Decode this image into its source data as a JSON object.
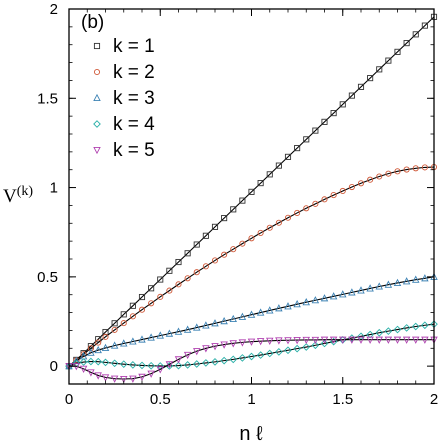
{
  "chart_data": {
    "type": "line",
    "panel_label": "(b)",
    "xlabel": "n ℓ",
    "ylabel": "V",
    "ylabel_sup": "(k)",
    "xlim": [
      0,
      2
    ],
    "ylim": [
      -0.1,
      2
    ],
    "x_ticks": [
      {
        "value": 0,
        "label": "0"
      },
      {
        "value": 0.5,
        "label": "0.5"
      },
      {
        "value": 1,
        "label": "1"
      },
      {
        "value": 1.5,
        "label": "1.5"
      },
      {
        "value": 2,
        "label": "2"
      }
    ],
    "y_ticks": [
      {
        "value": 0,
        "label": "0"
      },
      {
        "value": 0.5,
        "label": "0.5"
      },
      {
        "value": 1,
        "label": "1"
      },
      {
        "value": 1.5,
        "label": "1.5"
      },
      {
        "value": 2,
        "label": "2"
      }
    ],
    "grid": false,
    "legend_position": "top-left",
    "x": [
      0,
      0.04,
      0.08,
      0.12,
      0.16,
      0.2,
      0.25,
      0.3,
      0.35,
      0.4,
      0.45,
      0.5,
      0.55,
      0.6,
      0.65,
      0.7,
      0.75,
      0.8,
      0.85,
      0.9,
      0.95,
      1.0,
      1.05,
      1.1,
      1.15,
      1.2,
      1.25,
      1.3,
      1.35,
      1.4,
      1.45,
      1.5,
      1.55,
      1.6,
      1.65,
      1.7,
      1.75,
      1.8,
      1.85,
      1.9,
      1.95,
      2.0
    ],
    "series": [
      {
        "name": "k = 1",
        "marker": "square",
        "marker_color": "#333333",
        "values": [
          0,
          0.035,
          0.073,
          0.112,
          0.151,
          0.191,
          0.24,
          0.29,
          0.338,
          0.387,
          0.436,
          0.485,
          0.534,
          0.583,
          0.632,
          0.681,
          0.73,
          0.78,
          0.829,
          0.878,
          0.927,
          0.976,
          1.025,
          1.074,
          1.123,
          1.172,
          1.221,
          1.27,
          1.319,
          1.368,
          1.417,
          1.466,
          1.515,
          1.564,
          1.613,
          1.662,
          1.711,
          1.76,
          1.809,
          1.858,
          1.907,
          1.956
        ]
      },
      {
        "name": "k = 2",
        "marker": "circle",
        "marker_color": "#d05a3a",
        "values": [
          0,
          0.033,
          0.067,
          0.1,
          0.132,
          0.164,
          0.203,
          0.241,
          0.279,
          0.316,
          0.352,
          0.388,
          0.423,
          0.458,
          0.492,
          0.526,
          0.559,
          0.592,
          0.624,
          0.655,
          0.686,
          0.716,
          0.746,
          0.775,
          0.803,
          0.831,
          0.858,
          0.884,
          0.909,
          0.934,
          0.958,
          0.981,
          1.003,
          1.024,
          1.044,
          1.062,
          1.078,
          1.091,
          1.101,
          1.108,
          1.113,
          1.115
        ]
      },
      {
        "name": "k = 3",
        "marker": "triangle-up",
        "marker_color": "#3c82b4",
        "values": [
          0,
          0.03,
          0.055,
          0.075,
          0.09,
          0.102,
          0.115,
          0.127,
          0.138,
          0.149,
          0.16,
          0.171,
          0.182,
          0.193,
          0.204,
          0.216,
          0.228,
          0.24,
          0.252,
          0.264,
          0.276,
          0.288,
          0.3,
          0.312,
          0.324,
          0.335,
          0.347,
          0.358,
          0.369,
          0.38,
          0.391,
          0.402,
          0.413,
          0.424,
          0.435,
          0.446,
          0.456,
          0.466,
          0.475,
          0.484,
          0.492,
          0.5
        ]
      },
      {
        "name": "k = 4",
        "marker": "diamond",
        "marker_color": "#2ab0a8",
        "values": [
          0,
          0.015,
          0.023,
          0.026,
          0.025,
          0.021,
          0.016,
          0.011,
          0.007,
          0.004,
          0.002,
          0.001,
          0.001,
          0.003,
          0.007,
          0.012,
          0.018,
          0.024,
          0.031,
          0.038,
          0.046,
          0.054,
          0.062,
          0.071,
          0.08,
          0.089,
          0.098,
          0.107,
          0.117,
          0.127,
          0.137,
          0.147,
          0.157,
          0.167,
          0.177,
          0.187,
          0.196,
          0.205,
          0.214,
          0.222,
          0.229,
          0.235
        ]
      },
      {
        "name": "k = 5",
        "marker": "triangle-down",
        "marker_color": "#b040b0",
        "values": [
          0,
          0.0,
          -0.015,
          -0.035,
          -0.052,
          -0.063,
          -0.07,
          -0.072,
          -0.07,
          -0.06,
          -0.042,
          -0.018,
          0.01,
          0.038,
          0.063,
          0.084,
          0.1,
          0.112,
          0.121,
          0.128,
          0.133,
          0.137,
          0.14,
          0.142,
          0.144,
          0.145,
          0.146,
          0.147,
          0.147,
          0.148,
          0.148,
          0.148,
          0.148,
          0.148,
          0.148,
          0.148,
          0.148,
          0.148,
          0.148,
          0.148,
          0.148,
          0.148
        ]
      }
    ]
  }
}
